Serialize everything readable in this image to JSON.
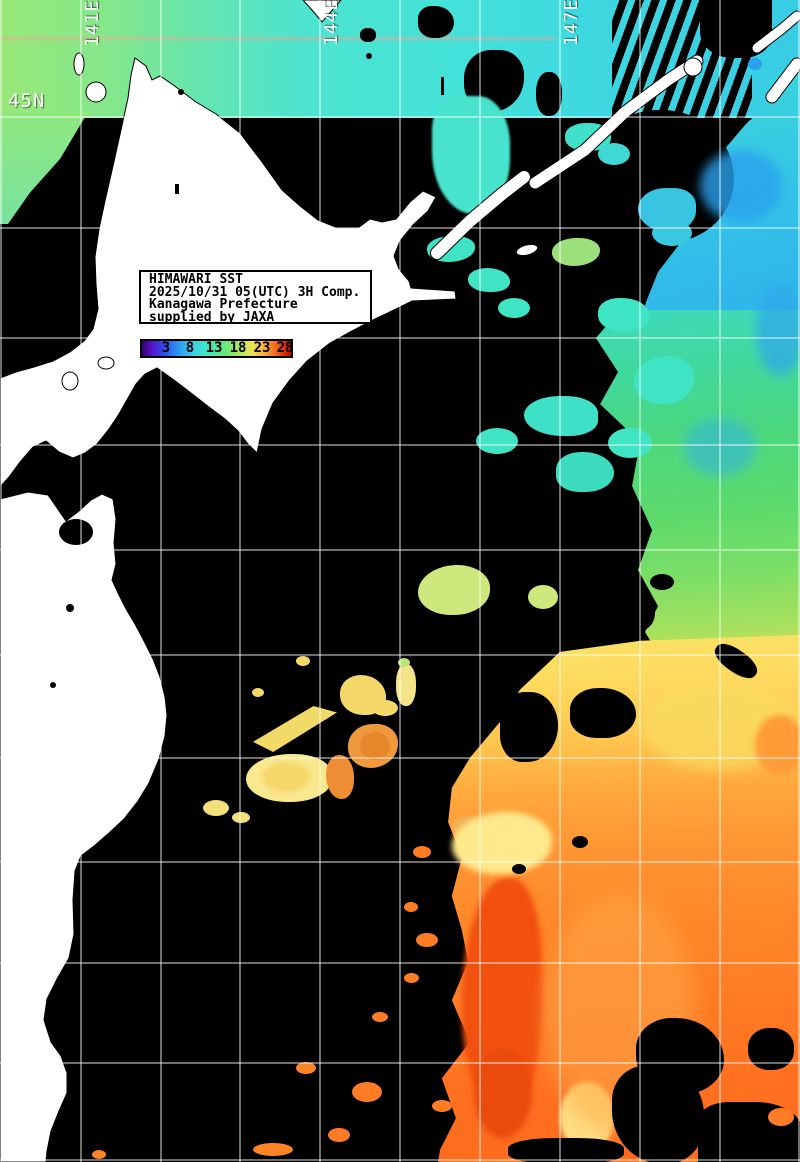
{
  "map": {
    "grid_labels": {
      "lat_45n": "45N",
      "lon_141e": "141E",
      "lon_144e": "144E",
      "lon_147e": "147E"
    }
  },
  "info_box": {
    "line1": "HIMAWARI SST",
    "line2": "2025/10/31 05(UTC) 3H Comp.",
    "line3": "Kanagawa Prefecture",
    "line4": "supplied by JAXA"
  },
  "legend": {
    "ticks": [
      "3",
      "8",
      "13",
      "18",
      "23",
      "28"
    ],
    "scale_colors": [
      "#32006e",
      "#2850f0",
      "#2e9af0",
      "#35d2e8",
      "#3fe8c0",
      "#62e87e",
      "#a6e85e",
      "#f0e254",
      "#f8a838",
      "#f05a18",
      "#c80000"
    ]
  },
  "colors": {
    "no_data_cloud": "#000000",
    "land": "#ffffff",
    "grid_lines": "#ffffff"
  }
}
